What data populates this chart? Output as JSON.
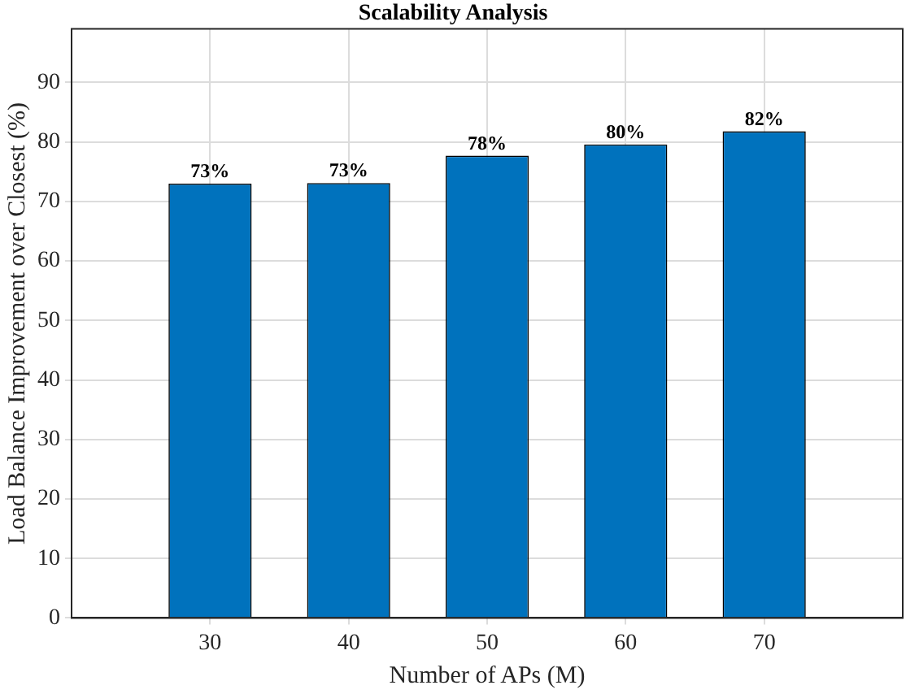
{
  "chart_data": {
    "type": "bar",
    "title": "Scalability Analysis",
    "xlabel": "Number of APs (M)",
    "ylabel": "Load Balance Improvement over Closest (%)",
    "x": [
      30,
      40,
      50,
      60,
      70
    ],
    "values": [
      73.0,
      73.1,
      77.7,
      79.6,
      81.8
    ],
    "value_labels": [
      "73%",
      "73%",
      "78%",
      "80%",
      "82%"
    ],
    "color": "#0072bd",
    "xlim": [
      20,
      80
    ],
    "xticks": [
      30,
      40,
      50,
      60,
      70
    ],
    "ylim": [
      0,
      99
    ],
    "yticks": [
      0,
      10,
      20,
      30,
      40,
      50,
      60,
      70,
      80,
      90
    ],
    "grid": true,
    "legend": false
  }
}
